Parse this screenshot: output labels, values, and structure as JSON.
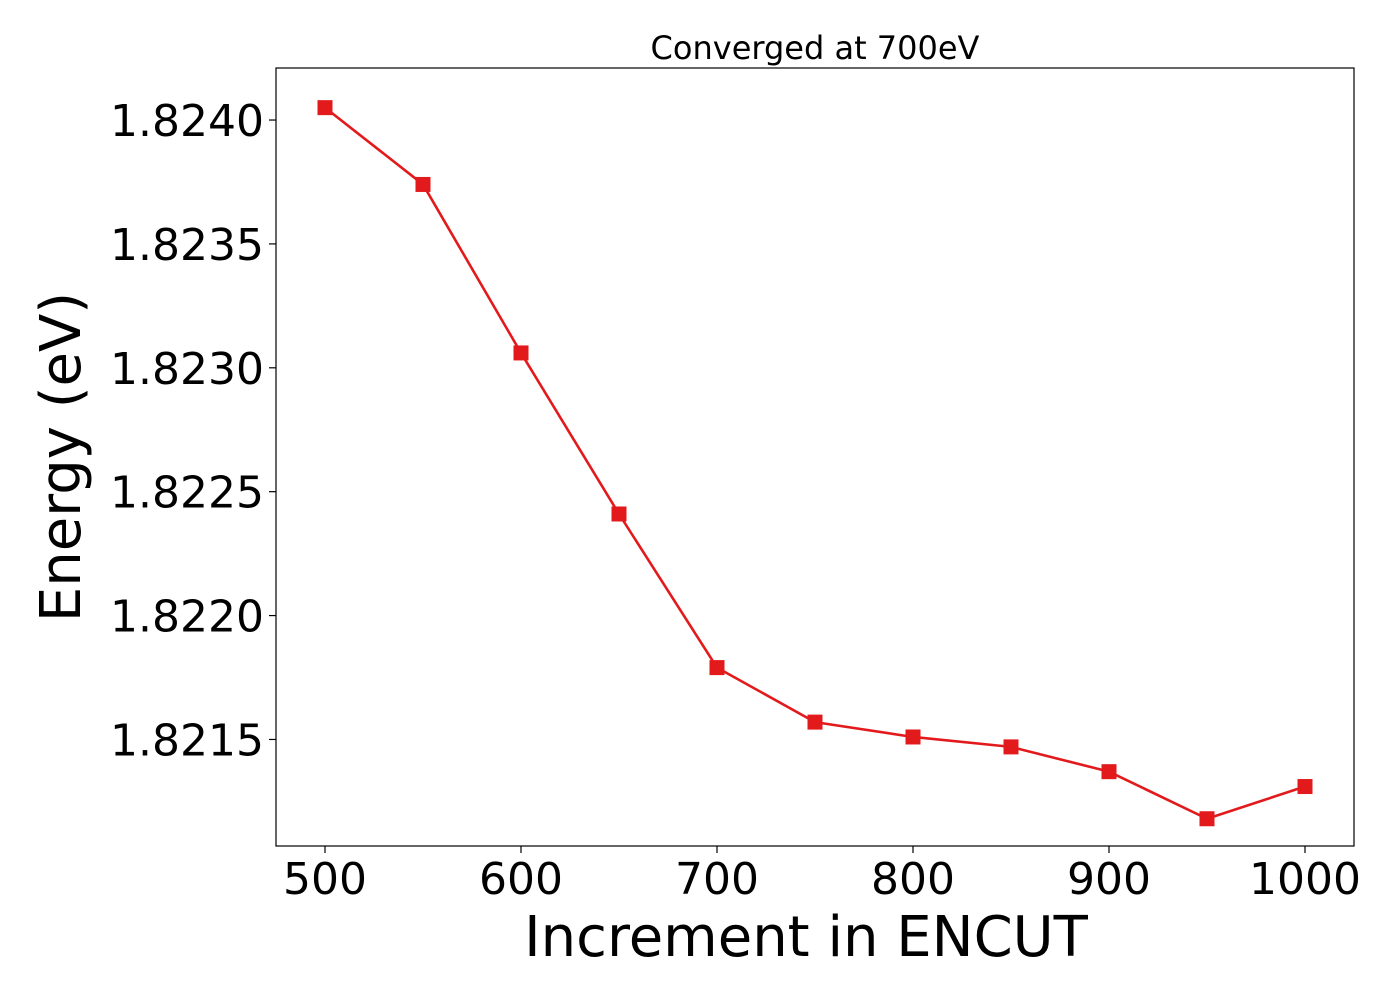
{
  "chart_data": {
    "type": "line",
    "title": "Converged at 700eV",
    "xlabel": "Increment in ENCUT",
    "ylabel": "Energy (eV)",
    "x": [
      500,
      550,
      600,
      650,
      700,
      750,
      800,
      850,
      900,
      950,
      1000
    ],
    "series": [
      {
        "values": [
          1.82405,
          1.82374,
          1.82306,
          1.82241,
          1.82179,
          1.82157,
          1.82151,
          1.82147,
          1.82137,
          1.82118,
          1.82131
        ],
        "color": "#e31a1c",
        "marker": "square"
      }
    ],
    "xlim": [
      475,
      1025
    ],
    "ylim": [
      1.82107,
      1.82421
    ],
    "xticks": [
      500,
      600,
      700,
      800,
      900,
      1000
    ],
    "xtick_labels": [
      "500",
      "600",
      "700",
      "800",
      "900",
      "1000"
    ],
    "yticks": [
      1.8215,
      1.822,
      1.8225,
      1.823,
      1.8235,
      1.824
    ],
    "ytick_labels": [
      "1.8215",
      "1.8220",
      "1.8225",
      "1.8230",
      "1.8235",
      "1.8240"
    ],
    "grid": false,
    "legend": "none"
  }
}
